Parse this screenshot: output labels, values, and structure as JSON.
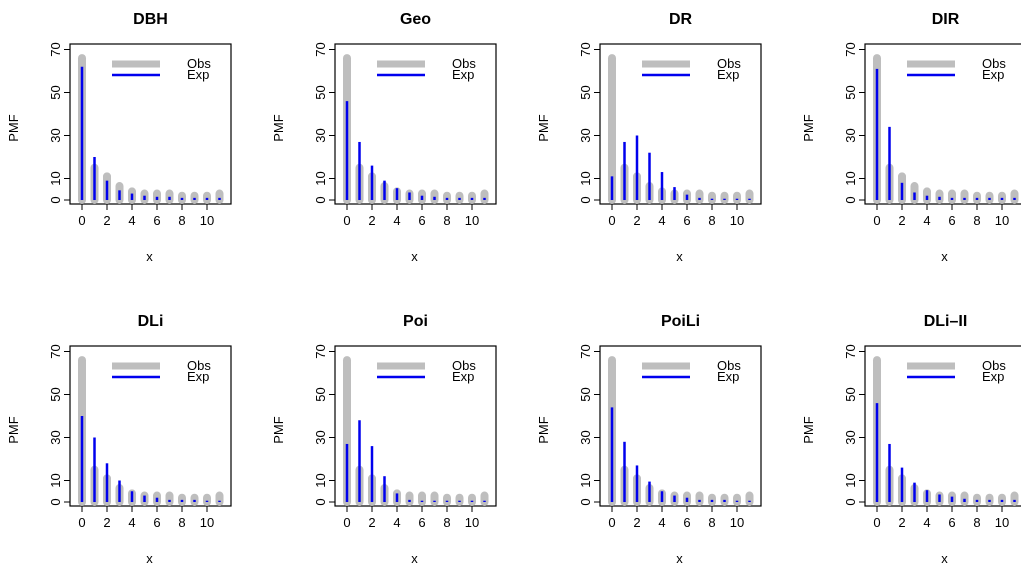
{
  "colors": {
    "obs": "#bebebe",
    "exp": "#0000ee",
    "axis": "#000000"
  },
  "chart_data": [
    {
      "type": "bar",
      "title": "DBH",
      "xlabel": "x",
      "ylabel": "PMF",
      "xlim": [
        0,
        11
      ],
      "ylim": [
        0,
        70
      ],
      "xticks": [
        "0",
        "2",
        "4",
        "6",
        "8",
        "10"
      ],
      "yticks": [
        "0",
        "10",
        "30",
        "50",
        "70"
      ],
      "legend": {
        "position": "top-right",
        "entries": [
          "Obs",
          "Exp"
        ]
      },
      "x": [
        0,
        1,
        2,
        3,
        4,
        5,
        6,
        7,
        8,
        9,
        10,
        11
      ],
      "series": [
        {
          "name": "Obs",
          "values": [
            66,
            15,
            11,
            6.5,
            4,
            3,
            3,
            3,
            2,
            2,
            2,
            3
          ]
        },
        {
          "name": "Exp",
          "values": [
            62,
            20,
            9,
            4.5,
            3,
            2,
            1.5,
            1.5,
            1,
            1,
            1,
            1
          ]
        }
      ]
    },
    {
      "type": "bar",
      "title": "Geo",
      "xlabel": "x",
      "ylabel": "PMF",
      "xlim": [
        0,
        11
      ],
      "ylim": [
        0,
        70
      ],
      "xticks": [
        "0",
        "2",
        "4",
        "6",
        "8",
        "10"
      ],
      "yticks": [
        "0",
        "10",
        "30",
        "50",
        "70"
      ],
      "legend": {
        "position": "top-right",
        "entries": [
          "Obs",
          "Exp"
        ]
      },
      "x": [
        0,
        1,
        2,
        3,
        4,
        5,
        6,
        7,
        8,
        9,
        10,
        11
      ],
      "series": [
        {
          "name": "Obs",
          "values": [
            66,
            15,
            11,
            6.5,
            4,
            3,
            3,
            3,
            2,
            2,
            2,
            3
          ]
        },
        {
          "name": "Exp",
          "values": [
            46,
            27,
            16,
            9,
            5.5,
            3.5,
            2,
            1.5,
            1,
            1,
            1,
            1
          ]
        }
      ]
    },
    {
      "type": "bar",
      "title": "DR",
      "xlabel": "x",
      "ylabel": "PMF",
      "xlim": [
        0,
        11
      ],
      "ylim": [
        0,
        70
      ],
      "xticks": [
        "0",
        "2",
        "4",
        "6",
        "8",
        "10"
      ],
      "yticks": [
        "0",
        "10",
        "30",
        "50",
        "70"
      ],
      "legend": {
        "position": "top-right",
        "entries": [
          "Obs",
          "Exp"
        ]
      },
      "x": [
        0,
        1,
        2,
        3,
        4,
        5,
        6,
        7,
        8,
        9,
        10,
        11
      ],
      "series": [
        {
          "name": "Obs",
          "values": [
            66,
            15,
            11,
            6.5,
            4,
            3,
            3,
            3,
            2,
            2,
            2,
            3
          ]
        },
        {
          "name": "Exp",
          "values": [
            11,
            27,
            30,
            22,
            13,
            6,
            2.5,
            1,
            0.5,
            0.5,
            0.5,
            0.5
          ]
        }
      ]
    },
    {
      "type": "bar",
      "title": "DIR",
      "xlabel": "x",
      "ylabel": "PMF",
      "xlim": [
        0,
        11
      ],
      "ylim": [
        0,
        70
      ],
      "xticks": [
        "0",
        "2",
        "4",
        "6",
        "8",
        "10"
      ],
      "yticks": [
        "0",
        "10",
        "30",
        "50",
        "70"
      ],
      "legend": {
        "position": "top-right",
        "entries": [
          "Obs",
          "Exp"
        ]
      },
      "x": [
        0,
        1,
        2,
        3,
        4,
        5,
        6,
        7,
        8,
        9,
        10,
        11
      ],
      "series": [
        {
          "name": "Obs",
          "values": [
            66,
            15,
            11,
            6.5,
            4,
            3,
            3,
            3,
            2,
            2,
            2,
            3
          ]
        },
        {
          "name": "Exp",
          "values": [
            61,
            34,
            8,
            3.5,
            2,
            1.5,
            1,
            1,
            1,
            1,
            1,
            1
          ]
        }
      ]
    },
    {
      "type": "bar",
      "title": "DLi",
      "xlabel": "x",
      "ylabel": "PMF",
      "xlim": [
        0,
        11
      ],
      "ylim": [
        0,
        70
      ],
      "xticks": [
        "0",
        "2",
        "4",
        "6",
        "8",
        "10"
      ],
      "yticks": [
        "0",
        "10",
        "30",
        "50",
        "70"
      ],
      "legend": {
        "position": "top-right",
        "entries": [
          "Obs",
          "Exp"
        ]
      },
      "x": [
        0,
        1,
        2,
        3,
        4,
        5,
        6,
        7,
        8,
        9,
        10,
        11
      ],
      "series": [
        {
          "name": "Obs",
          "values": [
            66,
            15,
            11,
            6.5,
            4,
            3,
            3,
            3,
            2,
            2,
            2,
            3
          ]
        },
        {
          "name": "Exp",
          "values": [
            40,
            30,
            18,
            10,
            5,
            3,
            2,
            1,
            1,
            1,
            0.5,
            0.5
          ]
        }
      ]
    },
    {
      "type": "bar",
      "title": "Poi",
      "xlabel": "x",
      "ylabel": "PMF",
      "xlim": [
        0,
        11
      ],
      "ylim": [
        0,
        70
      ],
      "xticks": [
        "0",
        "2",
        "4",
        "6",
        "8",
        "10"
      ],
      "yticks": [
        "0",
        "10",
        "30",
        "50",
        "70"
      ],
      "legend": {
        "position": "top-right",
        "entries": [
          "Obs",
          "Exp"
        ]
      },
      "x": [
        0,
        1,
        2,
        3,
        4,
        5,
        6,
        7,
        8,
        9,
        10,
        11
      ],
      "series": [
        {
          "name": "Obs",
          "values": [
            66,
            15,
            11,
            6.5,
            4,
            3,
            3,
            3,
            2,
            2,
            2,
            3
          ]
        },
        {
          "name": "Exp",
          "values": [
            27,
            38,
            26,
            12,
            4,
            1,
            0.5,
            0.5,
            0.5,
            0.5,
            0.5,
            0.5
          ]
        }
      ]
    },
    {
      "type": "bar",
      "title": "PoiLi",
      "xlabel": "x",
      "ylabel": "PMF",
      "xlim": [
        0,
        11
      ],
      "ylim": [
        0,
        70
      ],
      "xticks": [
        "0",
        "2",
        "4",
        "6",
        "8",
        "10"
      ],
      "yticks": [
        "0",
        "10",
        "30",
        "50",
        "70"
      ],
      "legend": {
        "position": "top-right",
        "entries": [
          "Obs",
          "Exp"
        ]
      },
      "x": [
        0,
        1,
        2,
        3,
        4,
        5,
        6,
        7,
        8,
        9,
        10,
        11
      ],
      "series": [
        {
          "name": "Obs",
          "values": [
            66,
            15,
            11,
            6.5,
            4,
            3,
            3,
            3,
            2,
            2,
            2,
            3
          ]
        },
        {
          "name": "Exp",
          "values": [
            44,
            28,
            17,
            9.5,
            5,
            3,
            2,
            1,
            1,
            1,
            0.5,
            0.5
          ]
        }
      ]
    },
    {
      "type": "bar",
      "title": "DLi–II",
      "xlabel": "x",
      "ylabel": "PMF",
      "xlim": [
        0,
        11
      ],
      "ylim": [
        0,
        70
      ],
      "xticks": [
        "0",
        "2",
        "4",
        "6",
        "8",
        "10"
      ],
      "yticks": [
        "0",
        "10",
        "30",
        "50",
        "70"
      ],
      "legend": {
        "position": "top-right",
        "entries": [
          "Obs",
          "Exp"
        ]
      },
      "x": [
        0,
        1,
        2,
        3,
        4,
        5,
        6,
        7,
        8,
        9,
        10,
        11
      ],
      "series": [
        {
          "name": "Obs",
          "values": [
            66,
            15,
            11,
            6.5,
            4,
            3,
            3,
            3,
            2,
            2,
            2,
            3
          ]
        },
        {
          "name": "Exp",
          "values": [
            46,
            27,
            16,
            9,
            5.5,
            3.5,
            2.5,
            1.5,
            1,
            1,
            1,
            1
          ]
        }
      ]
    }
  ]
}
